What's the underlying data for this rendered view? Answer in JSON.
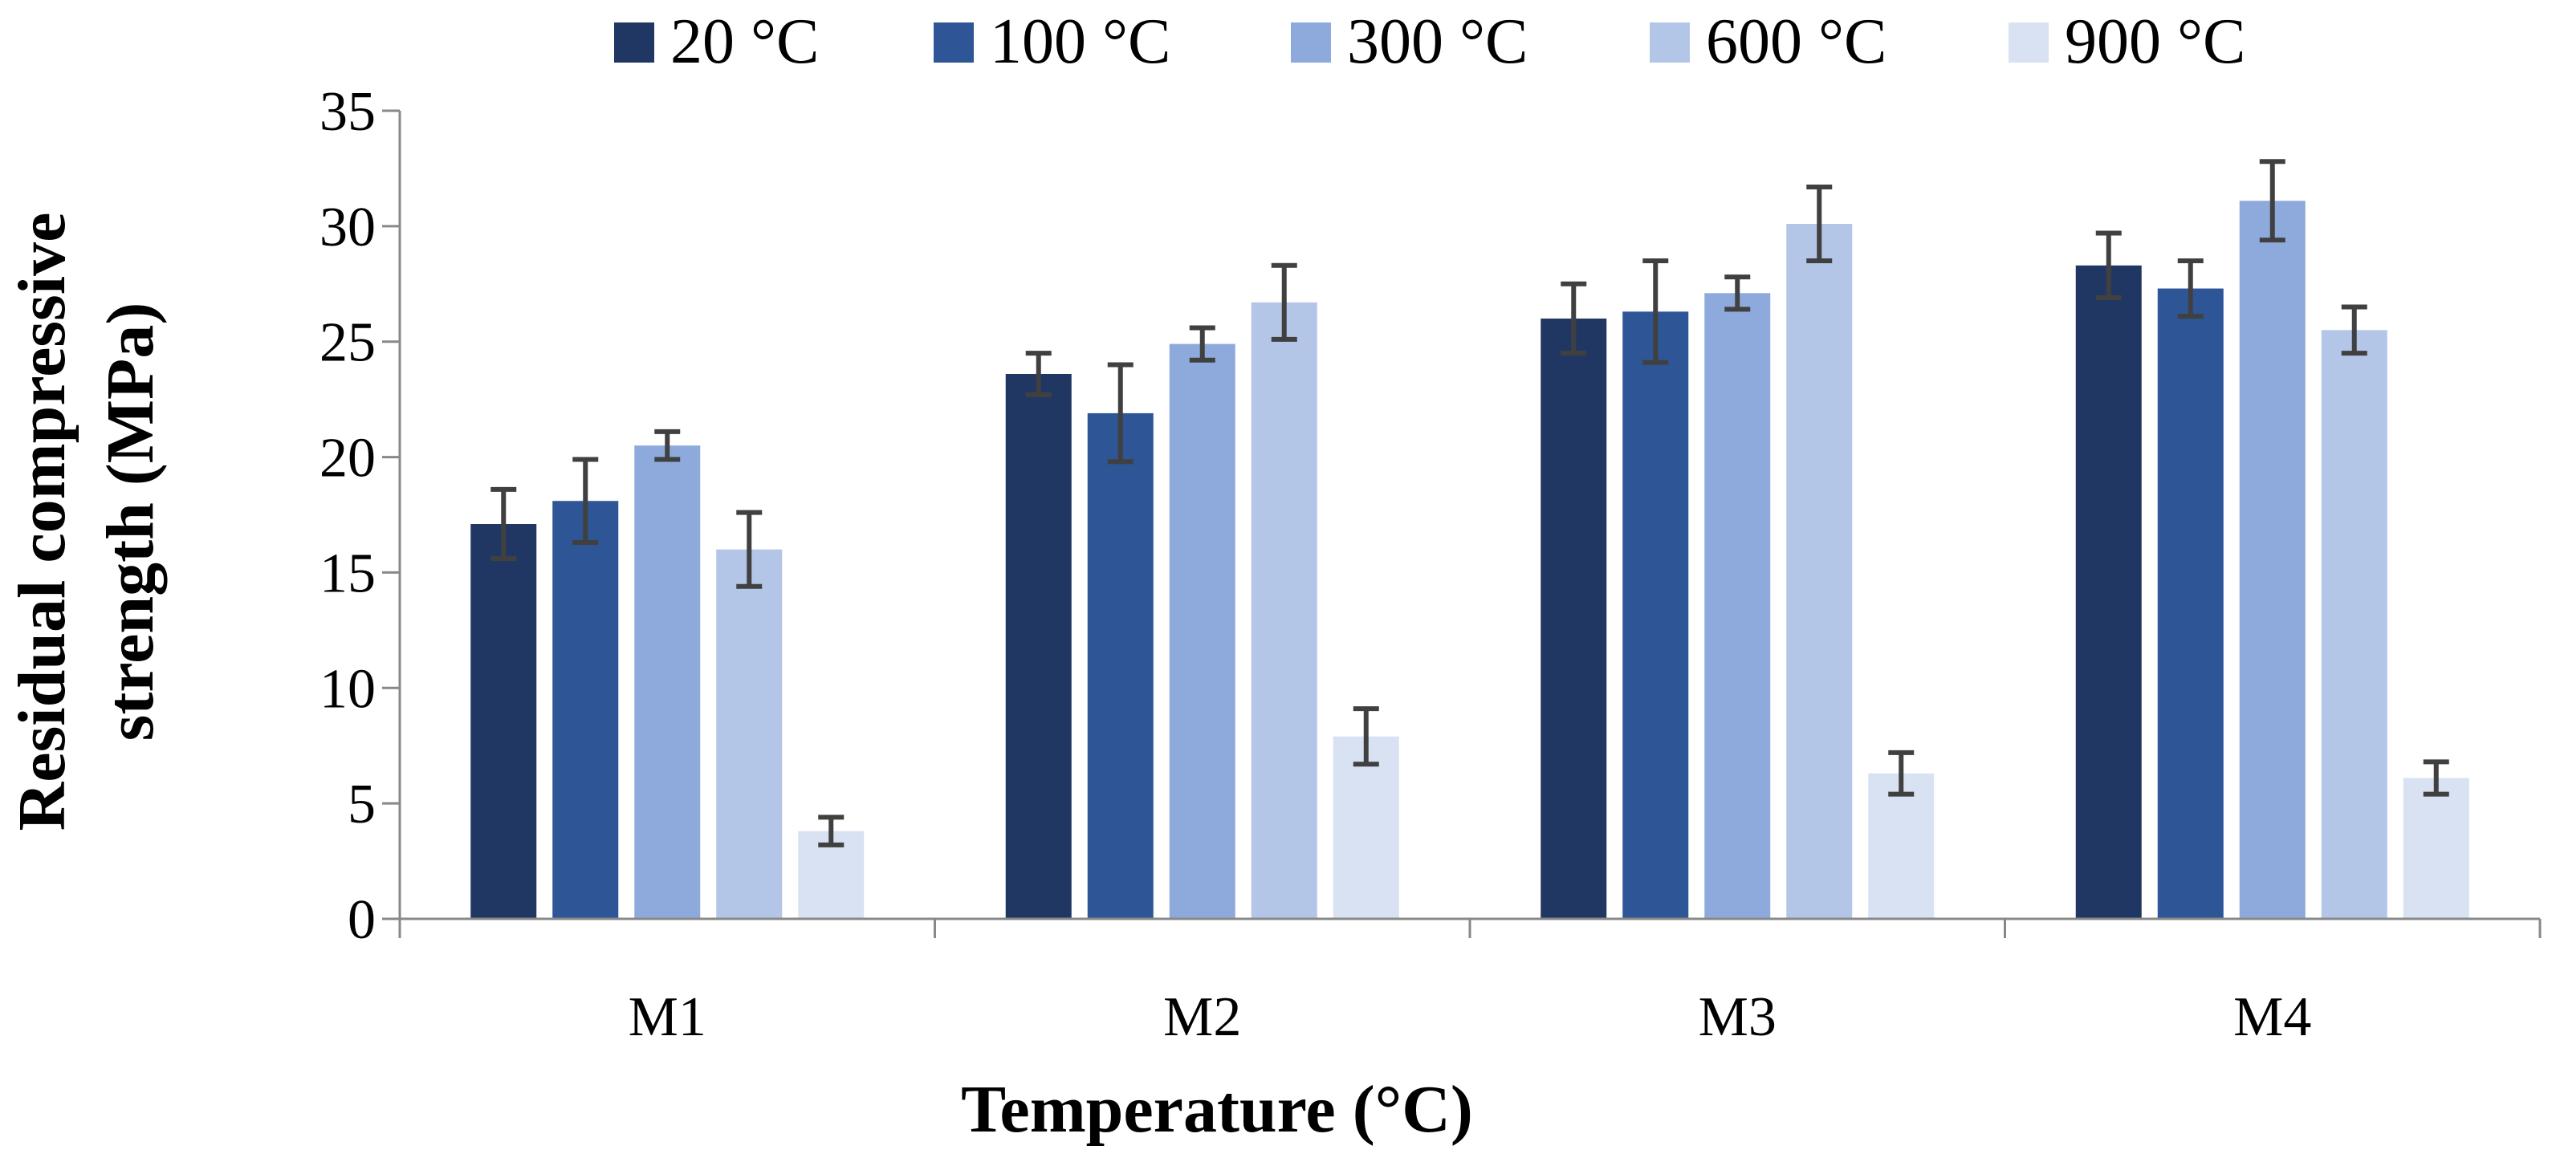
{
  "chart_data": {
    "type": "bar",
    "title": "",
    "xlabel": "Temperature (°C)",
    "ylabel_lines": [
      "Residual compressive",
      "strength (MPa)"
    ],
    "categories": [
      "M1",
      "M2",
      "M3",
      "M4"
    ],
    "ylim": [
      0,
      35
    ],
    "yticks": [
      0,
      5,
      10,
      15,
      20,
      25,
      30,
      35
    ],
    "grid": false,
    "legend_position": "top",
    "error_bars": true,
    "series": [
      {
        "name": "20 °C",
        "color": "#213763",
        "values": [
          17.1,
          23.6,
          26.0,
          28.3
        ],
        "errors": [
          1.5,
          0.9,
          1.5,
          1.4
        ]
      },
      {
        "name": "100 °C",
        "color": "#2e5596",
        "values": [
          18.1,
          21.9,
          26.3,
          27.3
        ],
        "errors": [
          1.8,
          2.1,
          2.2,
          1.2
        ]
      },
      {
        "name": "300 °C",
        "color": "#8eaadc",
        "values": [
          20.5,
          24.9,
          27.1,
          31.1
        ],
        "errors": [
          0.6,
          0.7,
          0.7,
          1.7
        ]
      },
      {
        "name": "600 °C",
        "color": "#b4c6e7",
        "values": [
          16.0,
          26.7,
          30.1,
          25.5
        ],
        "errors": [
          1.6,
          1.6,
          1.6,
          1.0
        ]
      },
      {
        "name": "900 °C",
        "color": "#d9e2f3",
        "values": [
          3.8,
          7.9,
          6.3,
          6.1
        ],
        "errors": [
          0.6,
          1.2,
          0.9,
          0.7
        ]
      }
    ],
    "error_bar_color": "#404040",
    "axis_color": "#888888"
  }
}
